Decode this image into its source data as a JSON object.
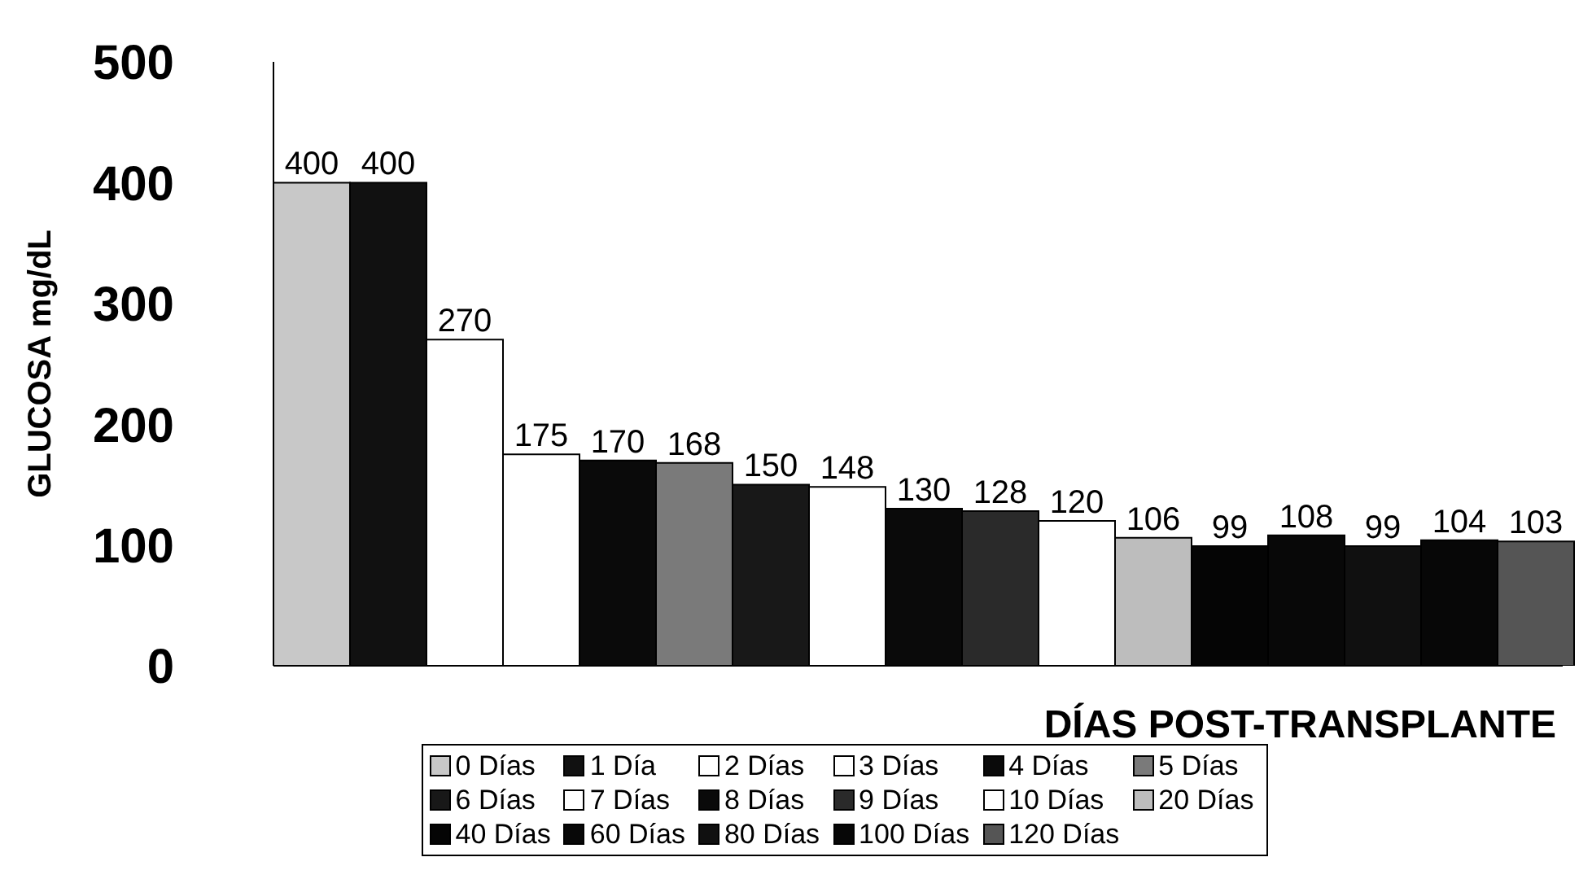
{
  "chart_data": {
    "type": "bar",
    "xlabel": "DÍAS POST-TRANSPLANTE",
    "ylabel": "GLUCOSA mg/dL",
    "categories": [
      null
    ],
    "ylim": [
      0,
      500
    ],
    "yticks": [
      0,
      100,
      200,
      300,
      400,
      500
    ],
    "legend": "bottom",
    "data_labels": true,
    "series": [
      {
        "name": "0 Días",
        "color": "#c8c8c8",
        "values": [
          400
        ]
      },
      {
        "name": "1 Día",
        "color": "#111111",
        "values": [
          400
        ]
      },
      {
        "name": "2 Días",
        "color": "#ffffff",
        "values": [
          270
        ]
      },
      {
        "name": "3 Días",
        "color": "#ffffff",
        "values": [
          175
        ]
      },
      {
        "name": "4 Días",
        "color": "#0a0a0a",
        "values": [
          170
        ]
      },
      {
        "name": "5 Días",
        "color": "#7a7a7a",
        "values": [
          168
        ]
      },
      {
        "name": "6 Días",
        "color": "#181818",
        "values": [
          150
        ]
      },
      {
        "name": "7 Días",
        "color": "#ffffff",
        "values": [
          148
        ]
      },
      {
        "name": "8 Días",
        "color": "#0a0a0a",
        "values": [
          130
        ]
      },
      {
        "name": "9 Días",
        "color": "#2a2a2a",
        "values": [
          128
        ]
      },
      {
        "name": "10 Días",
        "color": "#ffffff",
        "values": [
          120
        ]
      },
      {
        "name": "20 Días",
        "color": "#bdbdbd",
        "values": [
          106
        ]
      },
      {
        "name": "40 Días",
        "color": "#050505",
        "values": [
          99
        ]
      },
      {
        "name": "60 Días",
        "color": "#080808",
        "values": [
          108
        ]
      },
      {
        "name": "80 Días",
        "color": "#101010",
        "values": [
          99
        ]
      },
      {
        "name": "100 Días",
        "color": "#070707",
        "values": [
          104
        ]
      },
      {
        "name": "120 Días",
        "color": "#555555",
        "values": [
          103
        ]
      }
    ]
  }
}
